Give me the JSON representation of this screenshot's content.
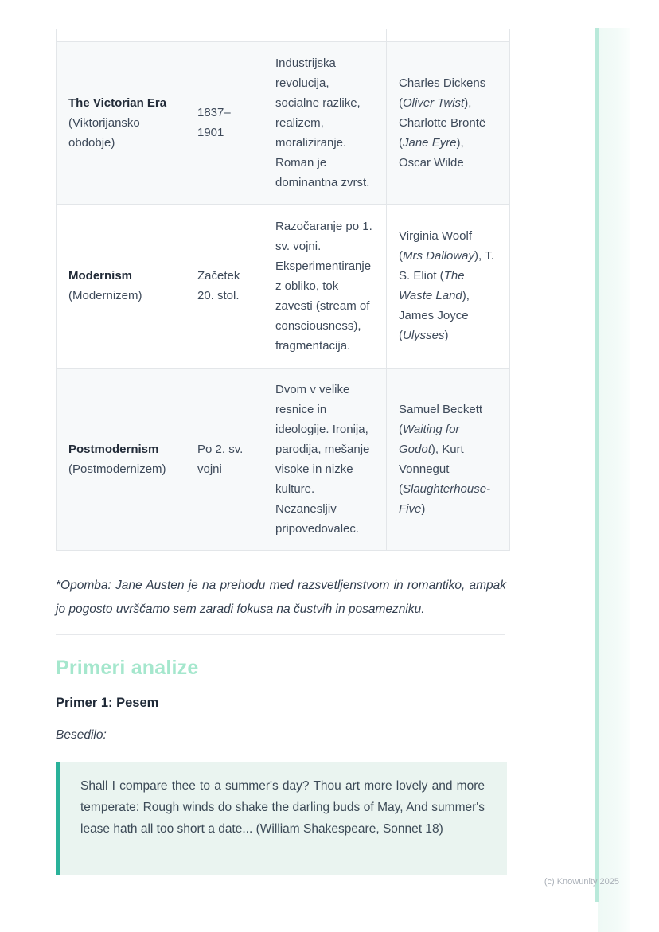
{
  "colors": {
    "accent_teal": "#2ab29a",
    "heading_mint": "#a5e7cd",
    "quote_background": "#eaf4f0",
    "edge_strip": "#b9e9da",
    "row_shade": "#f7f9fa",
    "table_border": "#e3e6e9"
  },
  "table": {
    "rows": [
      {
        "era_name": "The Victorian Era",
        "era_sub": "(Viktorijansko obdobje)",
        "period": "1837–1901",
        "characteristics": "Industrijska revolucija, socialne razlike, realizem, moraliziranje. Roman je dominantna zvrst.",
        "authors": [
          {
            "t": "Charles Dickens ("
          },
          {
            "t": "Oliver Twist",
            "i": true
          },
          {
            "t": "), Charlotte Brontë ("
          },
          {
            "t": "Jane Eyre",
            "i": true
          },
          {
            "t": "), Oscar Wilde"
          }
        ]
      },
      {
        "era_name": "Modernism",
        "era_sub": "(Modernizem)",
        "period": "Začetek 20. stol.",
        "characteristics": "Razočaranje po 1. sv. vojni. Eksperimentiranje z obliko, tok zavesti (stream of consciousness), fragmentacija.",
        "authors": [
          {
            "t": "Virginia Woolf ("
          },
          {
            "t": "Mrs Dalloway",
            "i": true
          },
          {
            "t": "), T. S. Eliot ("
          },
          {
            "t": "The Waste Land",
            "i": true
          },
          {
            "t": "), James Joyce ("
          },
          {
            "t": "Ulysses",
            "i": true
          },
          {
            "t": ")"
          }
        ]
      },
      {
        "era_name": "Postmodernism",
        "era_sub": "(Postmodernizem)",
        "period": "Po 2. sv. vojni",
        "characteristics": "Dvom v velike resnice in ideologije. Ironija, parodija, mešanje visoke in nizke kulture. Nezanesljiv pripovedovalec.",
        "authors": [
          {
            "t": "Samuel Beckett ("
          },
          {
            "t": "Waiting for Godot",
            "i": true
          },
          {
            "t": "), Kurt Vonnegut ("
          },
          {
            "t": "Slaughterhouse-Five",
            "i": true
          },
          {
            "t": ")"
          }
        ]
      }
    ]
  },
  "note": "*Opomba: Jane Austen je na prehodu med razsvetljenstvom in romantiko, ampak jo pogosto uvrščamo sem zaradi fokusa na čustvih in posamezniku.",
  "sections": {
    "heading": "Primeri analize",
    "example_title": "Primer 1: Pesem",
    "text_label": "Besedilo:",
    "quote": "Shall I compare thee to a summer's day? Thou art more lovely and more temperate: Rough winds do shake the darling buds of May, And summer's lease hath all too short a date... (William Shakespeare, Sonnet 18)"
  },
  "footer": {
    "copyright": "(c) Knowunity 2025"
  }
}
